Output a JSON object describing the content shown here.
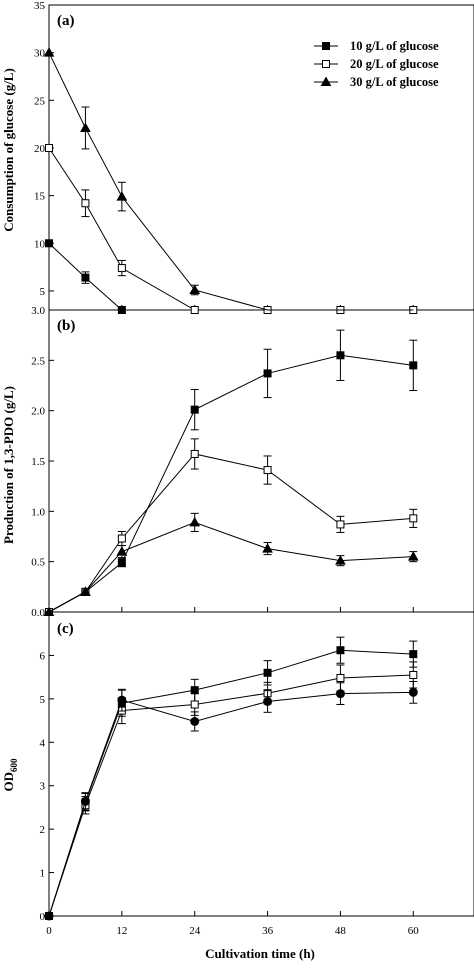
{
  "chart_data": [
    {
      "type": "line",
      "panel_label": "(a)",
      "ylabel": "Consumption of glucose (g/L)",
      "ylim": [
        3.0,
        35
      ],
      "y_ticks": [
        "3.0",
        "5",
        "10",
        "15",
        "20",
        "25",
        "30",
        "35"
      ],
      "legend": {
        "position": "top-right",
        "entries": [
          "10 g/L of glucose",
          "20 g/L of glucose",
          "30 g/L of glucose"
        ]
      },
      "series": [
        {
          "name": "10 g/L of glucose",
          "marker": "filled-square",
          "x": [
            0,
            6,
            12
          ],
          "y": [
            10,
            6.4,
            3.0
          ],
          "err": [
            0,
            0.6,
            0
          ]
        },
        {
          "name": "20 g/L of glucose",
          "marker": "open-square",
          "x": [
            0,
            6,
            12,
            24,
            36,
            48,
            60
          ],
          "y": [
            20,
            14.2,
            7.4,
            3.0,
            3.0,
            3.0,
            3.0
          ],
          "err": [
            0,
            1.4,
            0.8,
            0,
            0,
            0,
            0
          ]
        },
        {
          "name": "30 g/L of glucose",
          "marker": "filled-triangle",
          "x": [
            0,
            6,
            12,
            24,
            36,
            48,
            60
          ],
          "y": [
            30,
            22.1,
            14.9,
            5.1,
            2.4,
            1.7,
            1.6
          ],
          "err": [
            0,
            2.2,
            1.5,
            0.5,
            0.2,
            0.15,
            0.15
          ]
        }
      ]
    },
    {
      "type": "line",
      "panel_label": "(b)",
      "ylabel": "Production of 1,3-PDO (g/L)",
      "ylim": [
        0,
        3.0
      ],
      "y_ticks": [
        "0.0",
        "0.5",
        "1.0",
        "1.5",
        "2.0",
        "2.5"
      ],
      "series": [
        {
          "marker": "filled-square",
          "x": [
            0,
            6,
            12,
            24,
            36,
            48,
            60
          ],
          "y": [
            0,
            0.2,
            0.49,
            2.01,
            2.37,
            2.55,
            2.45
          ],
          "err": [
            0,
            0.02,
            0.04,
            0.2,
            0.24,
            0.25,
            0.25
          ]
        },
        {
          "marker": "open-square",
          "x": [
            0,
            6,
            12,
            24,
            36,
            48,
            60
          ],
          "y": [
            0,
            0.2,
            0.73,
            1.57,
            1.41,
            0.87,
            0.93
          ],
          "err": [
            0,
            0.02,
            0.07,
            0.15,
            0.14,
            0.08,
            0.09
          ]
        },
        {
          "marker": "filled-triangle",
          "x": [
            0,
            6,
            12,
            24,
            36,
            48,
            60
          ],
          "y": [
            0,
            0.2,
            0.6,
            0.89,
            0.63,
            0.51,
            0.55
          ],
          "err": [
            0,
            0.02,
            0.06,
            0.09,
            0.06,
            0.05,
            0.05
          ]
        }
      ]
    },
    {
      "type": "line",
      "panel_label": "(c)",
      "ylabel": "OD",
      "ylabel_sub": "600",
      "xlabel": "Cultivation time (h)",
      "ylim": [
        0,
        7
      ],
      "xlim": [
        0,
        70
      ],
      "y_ticks": [
        "0",
        "1",
        "2",
        "3",
        "4",
        "5",
        "6"
      ],
      "x_ticks": [
        "0",
        "12",
        "24",
        "36",
        "48",
        "60"
      ],
      "series": [
        {
          "marker": "filled-square",
          "x": [
            0,
            6,
            12,
            24,
            36,
            48,
            60
          ],
          "y": [
            0,
            2.62,
            4.9,
            5.2,
            5.6,
            6.12,
            6.03
          ],
          "err": [
            0,
            0.2,
            0.3,
            0.25,
            0.28,
            0.3,
            0.3
          ]
        },
        {
          "marker": "open-square",
          "x": [
            0,
            6,
            12,
            24,
            36,
            48,
            60
          ],
          "y": [
            0,
            2.55,
            4.73,
            4.87,
            5.13,
            5.48,
            5.55
          ],
          "err": [
            0,
            0.2,
            0.3,
            0.25,
            0.25,
            0.3,
            0.3
          ]
        },
        {
          "marker": "filled-circle",
          "x": [
            0,
            6,
            12,
            24,
            36,
            48,
            60
          ],
          "y": [
            0,
            2.64,
            4.97,
            4.48,
            4.94,
            5.12,
            5.15
          ],
          "err": [
            0,
            0.2,
            0.25,
            0.22,
            0.25,
            0.25,
            0.25
          ]
        }
      ]
    }
  ]
}
